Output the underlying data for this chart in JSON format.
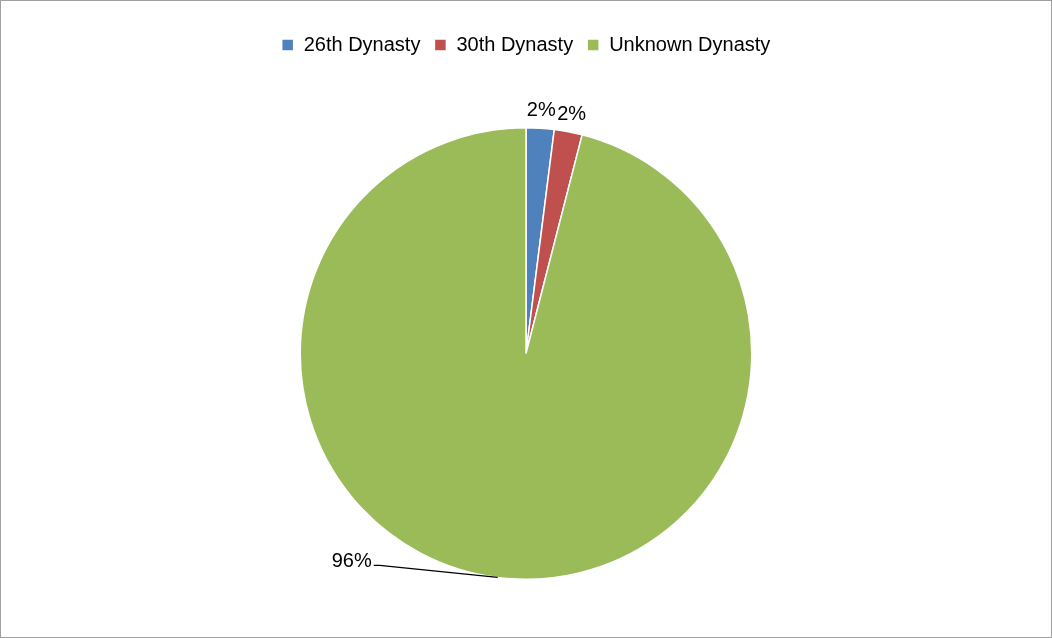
{
  "chart_data": {
    "type": "pie",
    "categories": [
      "26th Dynasty",
      "30th Dynasty",
      "Unknown Dynasty"
    ],
    "values": [
      2,
      2,
      96
    ],
    "colors": [
      "#4f81bd",
      "#c0504d",
      "#9bbb59"
    ],
    "value_labels": [
      "2%",
      "2%",
      "96%"
    ],
    "legend": "top"
  }
}
